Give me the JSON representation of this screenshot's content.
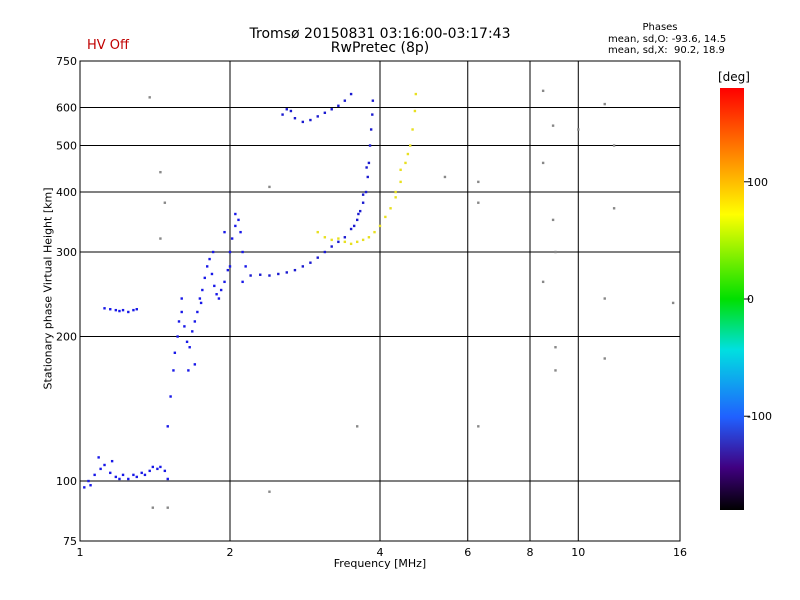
{
  "chart_data": {
    "type": "scatter",
    "title": "Tromsø 20150831 03:16:00-03:17:43",
    "subtitle": "RwPretec (8p)",
    "status_text": "HV Off",
    "xlabel": "Frequency [MHz]",
    "ylabel": "Stationary phase Virtual Height [km]",
    "xscale": "log",
    "yscale": "log",
    "xlim": [
      1,
      16
    ],
    "ylim": [
      75,
      750
    ],
    "xticks": [
      1,
      2,
      4,
      6,
      8,
      10,
      16
    ],
    "xtick_labels": [
      "1",
      "2",
      "4",
      "6",
      "8",
      "10",
      "16"
    ],
    "yticks": [
      75,
      100,
      200,
      300,
      400,
      500,
      600,
      750
    ],
    "ytick_labels": [
      "75",
      "100",
      "200",
      "300",
      "400",
      "500",
      "600",
      "750"
    ],
    "grid": true,
    "phase_stats": {
      "title": "Phases",
      "o_line": "mean, sd,O: -93.6, 14.5",
      "x_line": "mean, sd,X:  90.2, 18.9"
    },
    "colorbar": {
      "label": "[deg]",
      "ticks": [
        100,
        0,
        -100
      ],
      "tick_labels": [
        "100",
        "0",
        "-100"
      ],
      "range": [
        -180,
        180
      ]
    },
    "series": [
      {
        "trace": "E-region",
        "color": "#1818e8",
        "points": [
          [
            1.02,
            97
          ],
          [
            1.04,
            100
          ],
          [
            1.05,
            98
          ],
          [
            1.07,
            103
          ],
          [
            1.1,
            106
          ],
          [
            1.12,
            108
          ],
          [
            1.15,
            104
          ],
          [
            1.18,
            102
          ],
          [
            1.2,
            101
          ],
          [
            1.22,
            103
          ],
          [
            1.25,
            101
          ],
          [
            1.28,
            103
          ],
          [
            1.3,
            102
          ],
          [
            1.33,
            104
          ],
          [
            1.35,
            103
          ],
          [
            1.38,
            105
          ],
          [
            1.4,
            107
          ],
          [
            1.43,
            106
          ],
          [
            1.45,
            107
          ],
          [
            1.48,
            105
          ],
          [
            1.5,
            101
          ],
          [
            1.09,
            112
          ],
          [
            1.16,
            110
          ]
        ]
      },
      {
        "trace": "sporadic-230",
        "color": "#1818e8",
        "points": [
          [
            1.12,
            229
          ],
          [
            1.15,
            228
          ],
          [
            1.18,
            227
          ],
          [
            1.2,
            226
          ],
          [
            1.22,
            227
          ],
          [
            1.25,
            225
          ],
          [
            1.28,
            227
          ],
          [
            1.3,
            228
          ]
        ]
      },
      {
        "trace": "F1-cusp",
        "color": "#1818e8",
        "points": [
          [
            1.5,
            130
          ],
          [
            1.52,
            150
          ],
          [
            1.54,
            170
          ],
          [
            1.55,
            185
          ],
          [
            1.57,
            200
          ],
          [
            1.58,
            215
          ],
          [
            1.6,
            225
          ],
          [
            1.62,
            210
          ],
          [
            1.64,
            195
          ],
          [
            1.66,
            190
          ],
          [
            1.68,
            205
          ],
          [
            1.7,
            215
          ],
          [
            1.72,
            225
          ],
          [
            1.74,
            240
          ],
          [
            1.76,
            250
          ],
          [
            1.78,
            265
          ],
          [
            1.8,
            280
          ],
          [
            1.82,
            290
          ],
          [
            1.84,
            270
          ],
          [
            1.86,
            255
          ],
          [
            1.88,
            245
          ],
          [
            1.9,
            240
          ],
          [
            1.92,
            250
          ],
          [
            1.95,
            260
          ],
          [
            1.98,
            275
          ],
          [
            2.0,
            300
          ],
          [
            2.02,
            320
          ],
          [
            2.05,
            340
          ],
          [
            2.08,
            350
          ],
          [
            2.1,
            330
          ],
          [
            2.12,
            300
          ],
          [
            2.15,
            280
          ],
          [
            1.6,
            240
          ],
          [
            1.65,
            170
          ],
          [
            1.7,
            175
          ],
          [
            1.75,
            235
          ],
          [
            1.85,
            300
          ],
          [
            1.95,
            330
          ],
          [
            2.0,
            280
          ],
          [
            2.05,
            360
          ],
          [
            2.12,
            260
          ]
        ]
      },
      {
        "trace": "F2-o",
        "color": "#1a1ad0",
        "points": [
          [
            2.2,
            268
          ],
          [
            2.3,
            269
          ],
          [
            2.4,
            268
          ],
          [
            2.5,
            270
          ],
          [
            2.6,
            272
          ],
          [
            2.7,
            275
          ],
          [
            2.8,
            280
          ],
          [
            2.9,
            285
          ],
          [
            3.0,
            292
          ],
          [
            3.1,
            300
          ],
          [
            3.2,
            308
          ],
          [
            3.3,
            315
          ],
          [
            3.4,
            322
          ],
          [
            3.5,
            335
          ],
          [
            3.6,
            350
          ],
          [
            3.65,
            365
          ],
          [
            3.7,
            380
          ],
          [
            3.75,
            400
          ],
          [
            3.78,
            430
          ],
          [
            3.8,
            460
          ],
          [
            3.82,
            500
          ],
          [
            3.84,
            540
          ],
          [
            3.86,
            580
          ],
          [
            3.87,
            620
          ],
          [
            3.55,
            340
          ],
          [
            3.62,
            360
          ],
          [
            3.7,
            395
          ],
          [
            3.76,
            450
          ]
        ]
      },
      {
        "trace": "F2-o-upper",
        "color": "#1a1ad0",
        "points": [
          [
            2.55,
            580
          ],
          [
            2.6,
            595
          ],
          [
            2.65,
            590
          ],
          [
            2.7,
            570
          ],
          [
            2.8,
            560
          ],
          [
            2.9,
            565
          ],
          [
            3.0,
            575
          ],
          [
            3.1,
            585
          ],
          [
            3.2,
            595
          ],
          [
            3.3,
            605
          ],
          [
            3.4,
            620
          ],
          [
            3.5,
            640
          ]
        ]
      },
      {
        "trace": "F2-x",
        "color": "#e8e020",
        "points": [
          [
            3.0,
            330
          ],
          [
            3.1,
            322
          ],
          [
            3.2,
            318
          ],
          [
            3.3,
            320
          ],
          [
            3.4,
            315
          ],
          [
            3.5,
            312
          ],
          [
            3.6,
            315
          ],
          [
            3.7,
            318
          ],
          [
            3.8,
            322
          ],
          [
            3.9,
            330
          ],
          [
            4.0,
            340
          ],
          [
            4.1,
            355
          ],
          [
            4.2,
            370
          ],
          [
            4.3,
            390
          ],
          [
            4.4,
            420
          ],
          [
            4.5,
            460
          ],
          [
            4.6,
            500
          ],
          [
            4.65,
            540
          ],
          [
            4.7,
            590
          ],
          [
            4.72,
            640
          ],
          [
            4.3,
            400
          ],
          [
            4.4,
            445
          ],
          [
            4.55,
            480
          ]
        ]
      },
      {
        "trace": "scattered",
        "color": "#888888",
        "points": [
          [
            1.38,
            630
          ],
          [
            1.45,
            440
          ],
          [
            1.48,
            380
          ],
          [
            2.4,
            410
          ],
          [
            2.4,
            95
          ],
          [
            3.6,
            130
          ],
          [
            5.4,
            430
          ],
          [
            6.3,
            420
          ],
          [
            6.3,
            380
          ],
          [
            6.3,
            130
          ],
          [
            8.5,
            650
          ],
          [
            8.5,
            460
          ],
          [
            8.9,
            550
          ],
          [
            8.9,
            350
          ],
          [
            9.0,
            300
          ],
          [
            9.0,
            190
          ],
          [
            11.3,
            610
          ],
          [
            11.8,
            500
          ],
          [
            11.8,
            370
          ],
          [
            11.3,
            240
          ],
          [
            11.3,
            180
          ],
          [
            15.5,
            235
          ],
          [
            9.0,
            170
          ],
          [
            1.45,
            320
          ],
          [
            1.4,
            88
          ],
          [
            1.5,
            88
          ],
          [
            8.5,
            260
          ],
          [
            10.0,
            540
          ]
        ]
      }
    ]
  }
}
